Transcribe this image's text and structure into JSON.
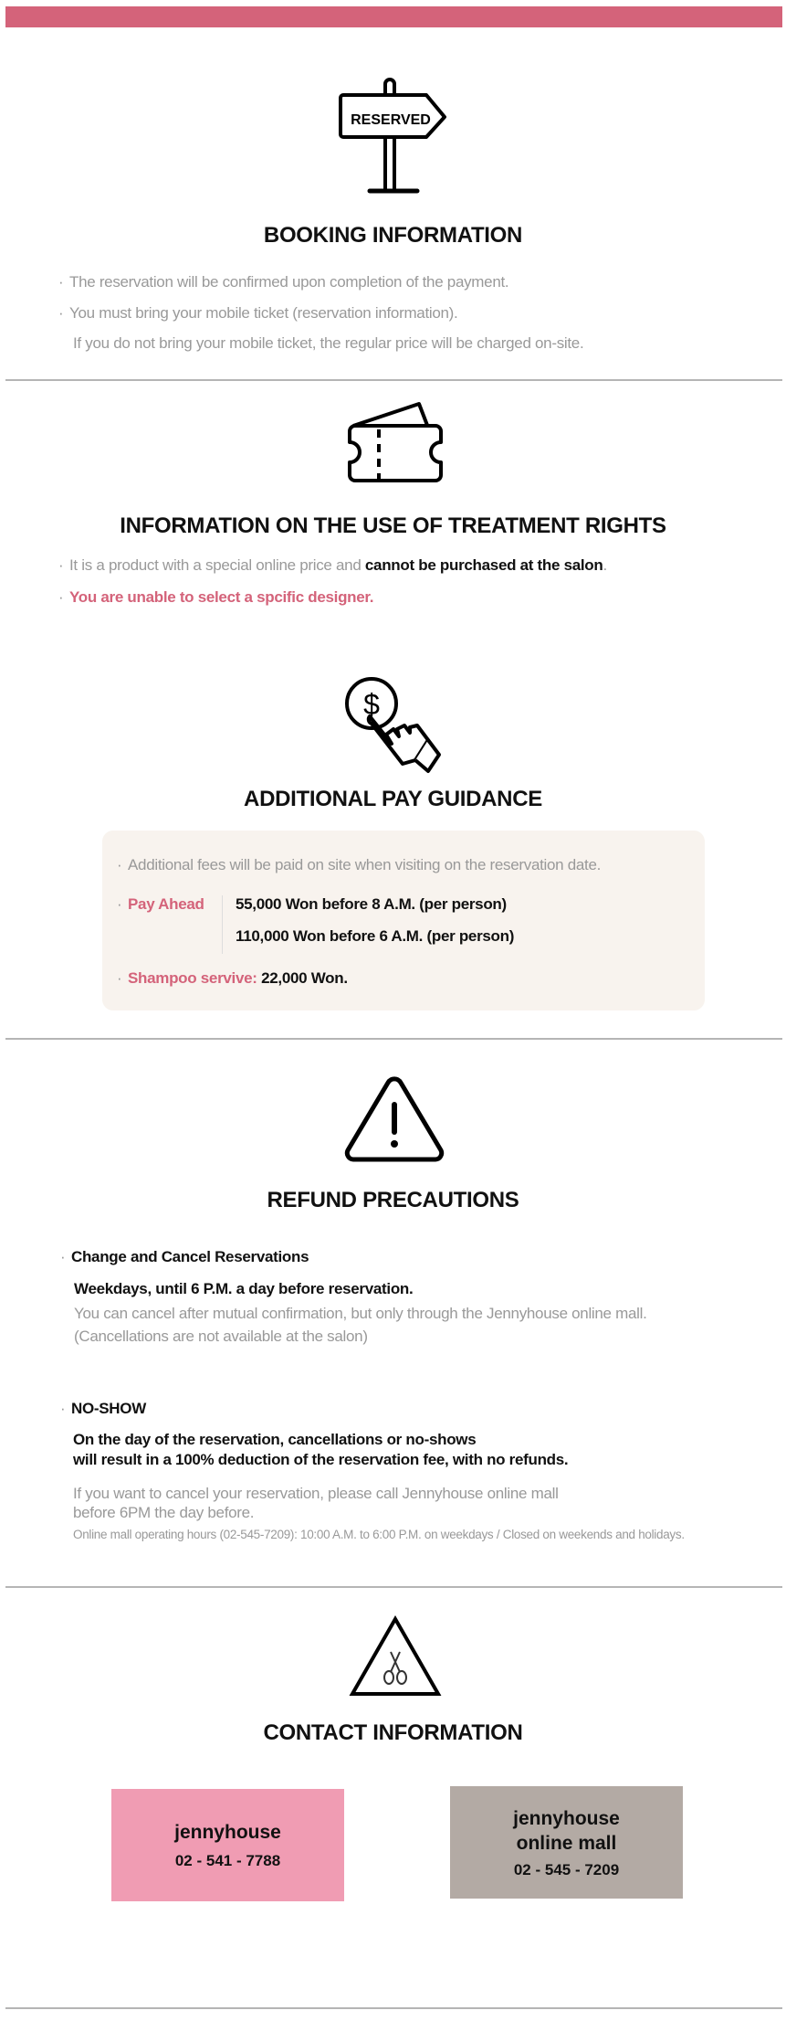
{
  "colors": {
    "accent": "#d4637a",
    "pay_box_bg": "#f8f3ee",
    "contact_salon_bg": "#f09cb3",
    "contact_mall_bg": "#b3aaa4"
  },
  "booking": {
    "icon": "reserved-sign-icon",
    "icon_text": "RESERVED",
    "title": "BOOKING INFORMATION",
    "items": [
      "The reservation will be confirmed upon completion of the payment.",
      "You must bring your mobile ticket (reservation information)."
    ],
    "item2_continued": "If you do not bring your mobile ticket, the regular price will be charged on-site."
  },
  "treatment": {
    "icon": "ticket-icon",
    "title": "INFORMATION ON THE USE OF TREATMENT RIGHTS",
    "item1_prefix": "It is a product with a special online price and ",
    "item1_bold": "cannot be purchased at the salon",
    "item1_suffix": ".",
    "item2": "You are unable to select a spcific designer."
  },
  "additional_pay": {
    "icon": "dollar-hand-icon",
    "title": "ADDITIONAL PAY GUIDANCE",
    "note": "Additional fees will be paid on site when visiting on the reservation date.",
    "pay_ahead_label": "Pay Ahead",
    "pay_ahead_values": [
      "55,000 Won before 8 A.M. (per person)",
      "110,000 Won before 6 A.M. (per person)"
    ],
    "shampoo_label": "Shampoo servive",
    "shampoo_sep": ":",
    "shampoo_value": " 22,000 Won."
  },
  "refund": {
    "icon": "warning-icon",
    "title": "REFUND PRECAUTIONS",
    "change_heading": "Change and Cancel Reservations",
    "change_bold": "Weekdays, until 6 P.M. a day before reservation.",
    "change_lines": [
      "You can cancel after mutual confirmation, but only through the Jennyhouse online mall.",
      "(Cancellations are not available at the salon)"
    ],
    "noshow_heading": "NO-SHOW",
    "noshow_bold": [
      "On the day of the reservation, cancellations or no-shows",
      "will result in a 100% deduction of the reservation fee, with no refunds."
    ],
    "noshow_lines": [
      "If you want to cancel your reservation, please call Jennyhouse online mall",
      "before 6PM the day before."
    ],
    "hours": "Online mall operating hours (02-545-7209): 10:00 A.M. to 6:00 P.M. on weekdays /  Closed on weekends and holidays."
  },
  "contact": {
    "icon": "scissors-triangle-icon",
    "title": "CONTACT INFORMATION",
    "salon": {
      "name": "jennyhouse",
      "phone": "02 - 541 - 7788"
    },
    "mall": {
      "name_line1": "jennyhouse",
      "name_line2": "online mall",
      "phone": "02 - 545 - 7209"
    }
  }
}
